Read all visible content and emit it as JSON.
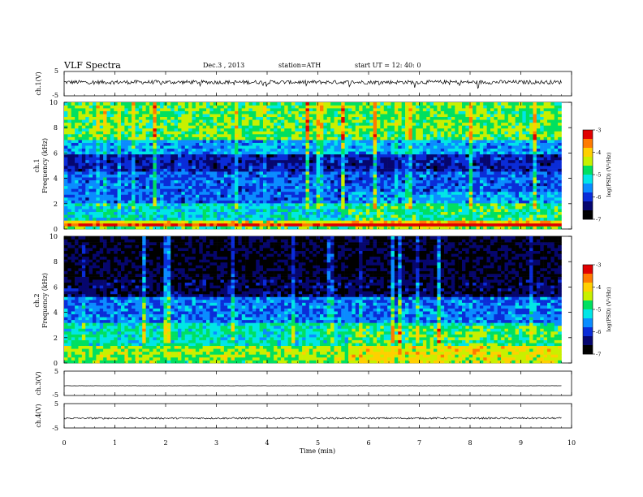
{
  "header": {
    "title": "VLF  Spectra",
    "date": "Dec.3  , 2013",
    "station": "station=ATH",
    "start_ut": "start  UT  =    12: 40: 0"
  },
  "chart_data": [
    {
      "type": "line",
      "panel": "ch1-waveform",
      "ylabel": "ch.1(V)",
      "ylim": [
        -5,
        5
      ],
      "y_ticks": [
        "5",
        "-5"
      ],
      "baseline": 0.6,
      "noise_amplitude": 0.8,
      "color": "#000000"
    },
    {
      "type": "heatmap",
      "panel": "ch1-spectrogram",
      "ylabel_channel": "ch.1",
      "ylabel": "Frequency  (kHz)",
      "ylim": [
        0,
        10
      ],
      "y_ticks": [
        "0",
        "2",
        "4",
        "6",
        "8",
        "10"
      ],
      "data_end_min": 9.8,
      "band_switch_min": 5.6,
      "bands_kHz": [
        {
          "from": 0,
          "to": 0.25,
          "level": 0.55
        },
        {
          "from": 0.25,
          "to": 0.5,
          "level": 0.95
        },
        {
          "from": 0.5,
          "to": 0.75,
          "level": 0.7
        },
        {
          "from": 0.75,
          "to": 2.0,
          "level": 0.45
        },
        {
          "from": 2.0,
          "to": 4.5,
          "level": 0.3
        },
        {
          "from": 4.5,
          "to": 6.0,
          "level": 0.2
        },
        {
          "from": 6.0,
          "to": 7.0,
          "level": 0.38
        },
        {
          "from": 7.0,
          "to": 10.0,
          "level": 0.58
        }
      ],
      "colorbar": {
        "label": "log(PSD) (V²/Hz)",
        "ticks": [
          "-3",
          "-4",
          "-5",
          "-6",
          "-7"
        ],
        "range": [
          -7,
          -3
        ]
      }
    },
    {
      "type": "heatmap",
      "panel": "ch2-spectrogram",
      "ylabel_channel": "ch.2",
      "ylabel": "Frequency  (kHz)",
      "ylim": [
        0,
        10
      ],
      "y_ticks": [
        "0",
        "2",
        "4",
        "6",
        "8",
        "10"
      ],
      "data_end_min": 9.8,
      "band_switch_min": 5.6,
      "bands_kHz": [
        {
          "from": 0,
          "to": 0.3,
          "level": 0.6
        },
        {
          "from": 0.3,
          "to": 1.3,
          "level": 0.62
        },
        {
          "from": 1.3,
          "to": 3.2,
          "level": 0.48
        },
        {
          "from": 3.2,
          "to": 5.2,
          "level": 0.32
        },
        {
          "from": 5.2,
          "to": 6.6,
          "level": 0.12
        },
        {
          "from": 6.6,
          "to": 10.0,
          "level": 0.08
        }
      ],
      "colorbar": {
        "label": "log(PSD) (V²/Hz)",
        "ticks": [
          "-3",
          "-4",
          "-5",
          "-6",
          "-7"
        ],
        "range": [
          -7,
          -3
        ]
      }
    },
    {
      "type": "line",
      "panel": "ch3-waveform",
      "ylabel": "ch.3(V)",
      "ylim": [
        -5,
        5
      ],
      "y_ticks": [
        "5",
        "-5"
      ],
      "baseline": -1.0,
      "noise_amplitude": 0.05,
      "color": "#000000"
    },
    {
      "type": "line",
      "panel": "ch4-waveform",
      "ylabel": "ch.4(V)",
      "ylim": [
        -5,
        5
      ],
      "y_ticks": [
        "5",
        "-5"
      ],
      "baseline": -1.0,
      "noise_amplitude": 0.35,
      "color": "#000000"
    }
  ],
  "x_axis": {
    "label": "Time  (min)",
    "range": [
      0,
      10
    ],
    "ticks": [
      "0",
      "1",
      "2",
      "3",
      "4",
      "5",
      "6",
      "7",
      "8",
      "9",
      "10"
    ]
  },
  "colormap": [
    "#000000",
    "#06066e",
    "#0a2cd8",
    "#0a8cff",
    "#00e6e6",
    "#00e060",
    "#c8f000",
    "#ffd000",
    "#ff7a00",
    "#e00000",
    "#ffffff"
  ]
}
